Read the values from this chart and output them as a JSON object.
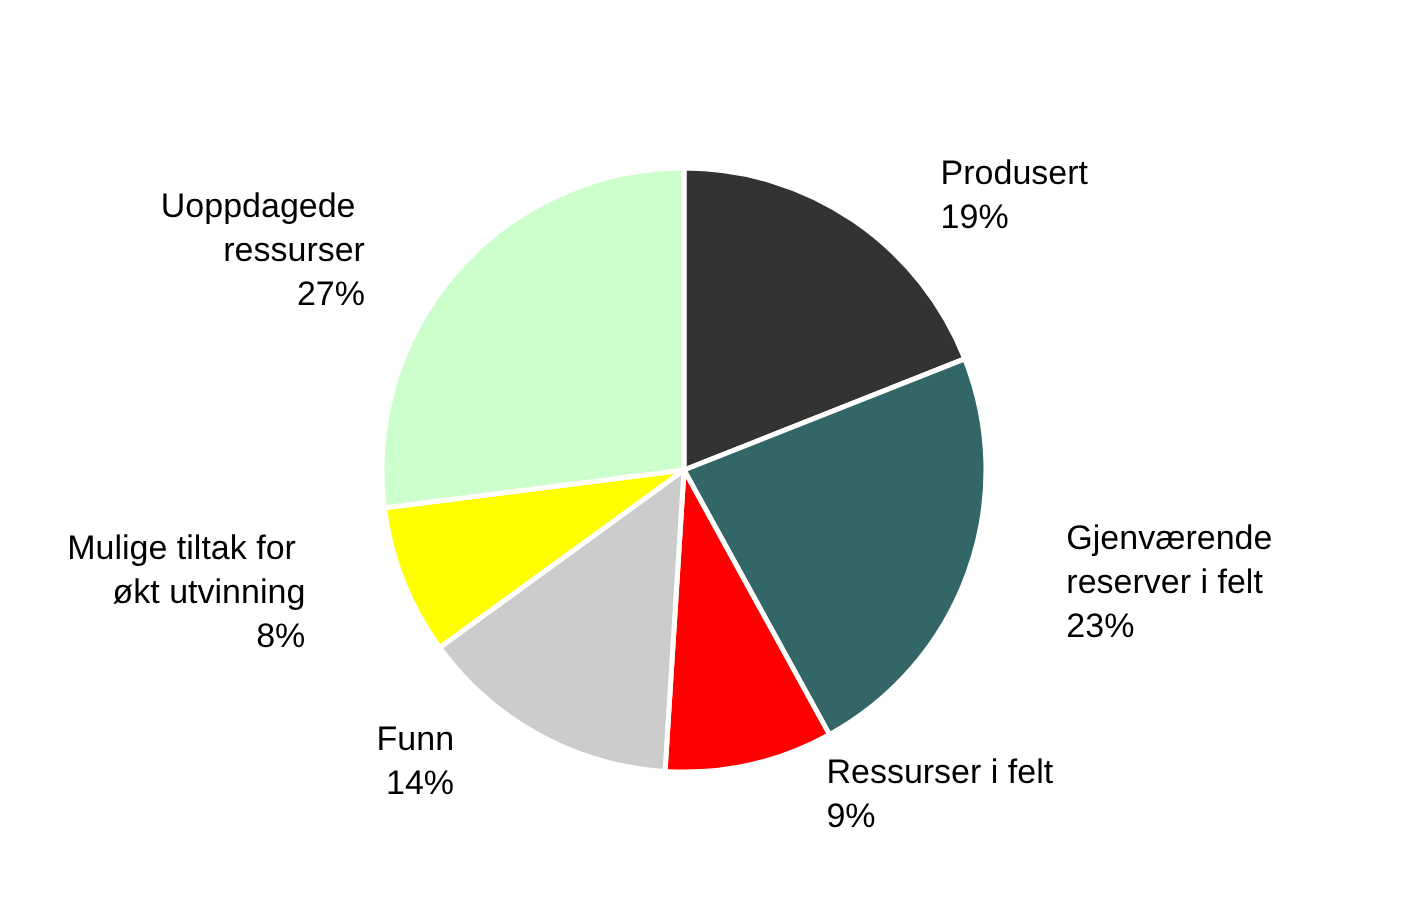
{
  "chart_data": {
    "type": "pie",
    "categories": [
      "Produsert",
      "Gjenværende reserver i felt",
      "Ressurser i felt",
      "Funn",
      "Mulige tiltak for økt utvinning",
      "Uoppdagede ressurser"
    ],
    "values": [
      19,
      23,
      9,
      14,
      8,
      27
    ],
    "value_labels": [
      "19%",
      "23%",
      "9%",
      "14%",
      "8%",
      "27%"
    ],
    "colors": [
      "#333333",
      "#336666",
      "#ff0000",
      "#cccccc",
      "#ffff00",
      "#ccffcc"
    ],
    "legend": false
  }
}
